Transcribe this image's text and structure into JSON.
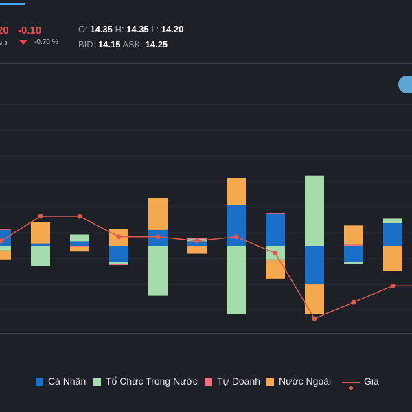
{
  "quote": {
    "last": "20",
    "change": "-0.10",
    "currency": "ND",
    "change_pct": "-0.70 %",
    "open_label": "O:",
    "open": "14.35",
    "high_label": "H:",
    "high": "14.35",
    "low_label": "L:",
    "low": "14.20",
    "bid_label": "BID:",
    "bid": "14.15",
    "ask_label": "ASK:",
    "ask": "14.25"
  },
  "colors": {
    "ca_nhan": "#1a6fc6",
    "to_chuc_trong_nuoc": "#a6dcab",
    "tu_doanh": "#ef6f82",
    "nuoc_ngoai": "#f4a94e",
    "gia": "#e0594e"
  },
  "chart_data": {
    "type": "bar",
    "stacked": true,
    "categories_count": 11,
    "series": [
      {
        "name": "Cá Nhân",
        "values": [
          0.7,
          0.1,
          0.2,
          -0.7,
          0.7,
          0.2,
          1.8,
          1.4,
          -1.7,
          -0.7,
          1.0
        ]
      },
      {
        "name": "Tổ Chức Trong Nước",
        "values": [
          -0.2,
          -0.9,
          0.3,
          -0.1,
          -2.2,
          0.1,
          -3.0,
          -0.6,
          3.1,
          -0.1,
          0.2
        ]
      },
      {
        "name": "Tự Doanh",
        "values": [
          0.05,
          0.0,
          -0.05,
          -0.05,
          0.0,
          0.05,
          0.0,
          0.05,
          0.0,
          0.05,
          0.0
        ]
      },
      {
        "name": "Nước Ngoài",
        "values": [
          -0.4,
          0.95,
          -0.2,
          0.75,
          1.4,
          -0.35,
          1.2,
          -0.85,
          -1.3,
          0.85,
          -1.1
        ]
      },
      {
        "name": "Giá",
        "type": "line",
        "values": [
          14.29,
          14.35,
          14.35,
          14.3,
          14.3,
          14.29,
          14.3,
          14.26,
          14.1,
          14.14,
          14.18
        ]
      }
    ],
    "grid": true,
    "legend_position": "bottom"
  },
  "legend": {
    "ca_nhan": "Cá Nhân",
    "to_chuc": "Tổ Chức Trong Nước",
    "tu_doanh": "Tự Doanh",
    "nuoc_ngoai": "Nước Ngoài",
    "gia": "Giá"
  }
}
